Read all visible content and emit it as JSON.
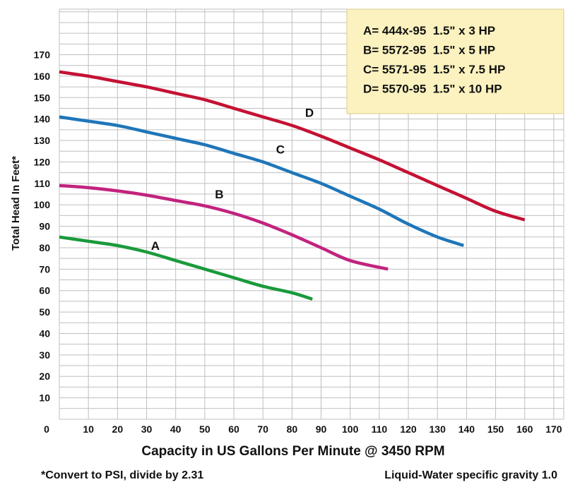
{
  "chart_data": {
    "type": "line",
    "title": "",
    "xlabel": "Capacity in US Gallons Per Minute @ 3450 RPM",
    "ylabel": "Total Head In Feet*",
    "xlim": [
      0,
      180
    ],
    "ylim": [
      0,
      180
    ],
    "x_ticks": [
      "0",
      "10",
      "20",
      "30",
      "40",
      "50",
      "60",
      "70",
      "80",
      "90",
      "100",
      "110",
      "120",
      "130",
      "140",
      "150",
      "160",
      "170"
    ],
    "y_ticks": [
      "10",
      "20",
      "30",
      "40",
      "50",
      "60",
      "70",
      "80",
      "90",
      "100",
      "110",
      "120",
      "130",
      "140",
      "150",
      "160",
      "170"
    ],
    "grid": true,
    "legend_position": "top-right",
    "legend": [
      "A= 444x-95  1.5\" x 3 HP",
      "B= 5572-95  1.5\" x 5 HP",
      "C= 5571-95  1.5\" x 7.5 HP",
      "D= 5570-95  1.5\" x 10 HP"
    ],
    "series": [
      {
        "name": "A",
        "color": "#1a9a3c",
        "label_at": [
          33,
          79
        ],
        "points": [
          [
            0,
            85
          ],
          [
            10,
            83
          ],
          [
            20,
            81
          ],
          [
            30,
            78
          ],
          [
            40,
            74
          ],
          [
            50,
            70
          ],
          [
            60,
            66
          ],
          [
            70,
            62
          ],
          [
            80,
            59
          ],
          [
            87,
            56
          ]
        ]
      },
      {
        "name": "B",
        "color": "#c2237e",
        "label_at": [
          55,
          103
        ],
        "points": [
          [
            0,
            109
          ],
          [
            10,
            108
          ],
          [
            20,
            106.5
          ],
          [
            30,
            104.5
          ],
          [
            40,
            102
          ],
          [
            50,
            99.5
          ],
          [
            60,
            96
          ],
          [
            70,
            91.5
          ],
          [
            80,
            86
          ],
          [
            90,
            80
          ],
          [
            100,
            74
          ],
          [
            113,
            70
          ]
        ]
      },
      {
        "name": "C",
        "color": "#1f76b9",
        "label_at": [
          76,
          124
        ],
        "points": [
          [
            0,
            141
          ],
          [
            10,
            139
          ],
          [
            20,
            137
          ],
          [
            30,
            134
          ],
          [
            40,
            131
          ],
          [
            50,
            128
          ],
          [
            60,
            124
          ],
          [
            70,
            120
          ],
          [
            80,
            115
          ],
          [
            90,
            110
          ],
          [
            100,
            104
          ],
          [
            110,
            98
          ],
          [
            120,
            91
          ],
          [
            130,
            85
          ],
          [
            139,
            81
          ]
        ]
      },
      {
        "name": "D",
        "color": "#c41234",
        "label_at": [
          86,
          141
        ],
        "points": [
          [
            0,
            162
          ],
          [
            10,
            160
          ],
          [
            20,
            157.5
          ],
          [
            30,
            155
          ],
          [
            40,
            152
          ],
          [
            50,
            149
          ],
          [
            60,
            145
          ],
          [
            70,
            141
          ],
          [
            80,
            137
          ],
          [
            90,
            132
          ],
          [
            100,
            126.5
          ],
          [
            110,
            121
          ],
          [
            120,
            115
          ],
          [
            130,
            109
          ],
          [
            140,
            103
          ],
          [
            150,
            97
          ],
          [
            160,
            93
          ]
        ]
      }
    ],
    "colors": {
      "grid": "#bfbfbf",
      "legend_bg": "#fbf2bf",
      "legend_border": "#d8cd8e"
    }
  },
  "footnotes": {
    "left": "*Convert to PSI, divide by 2.31",
    "right": "Liquid-Water specific gravity 1.0"
  }
}
